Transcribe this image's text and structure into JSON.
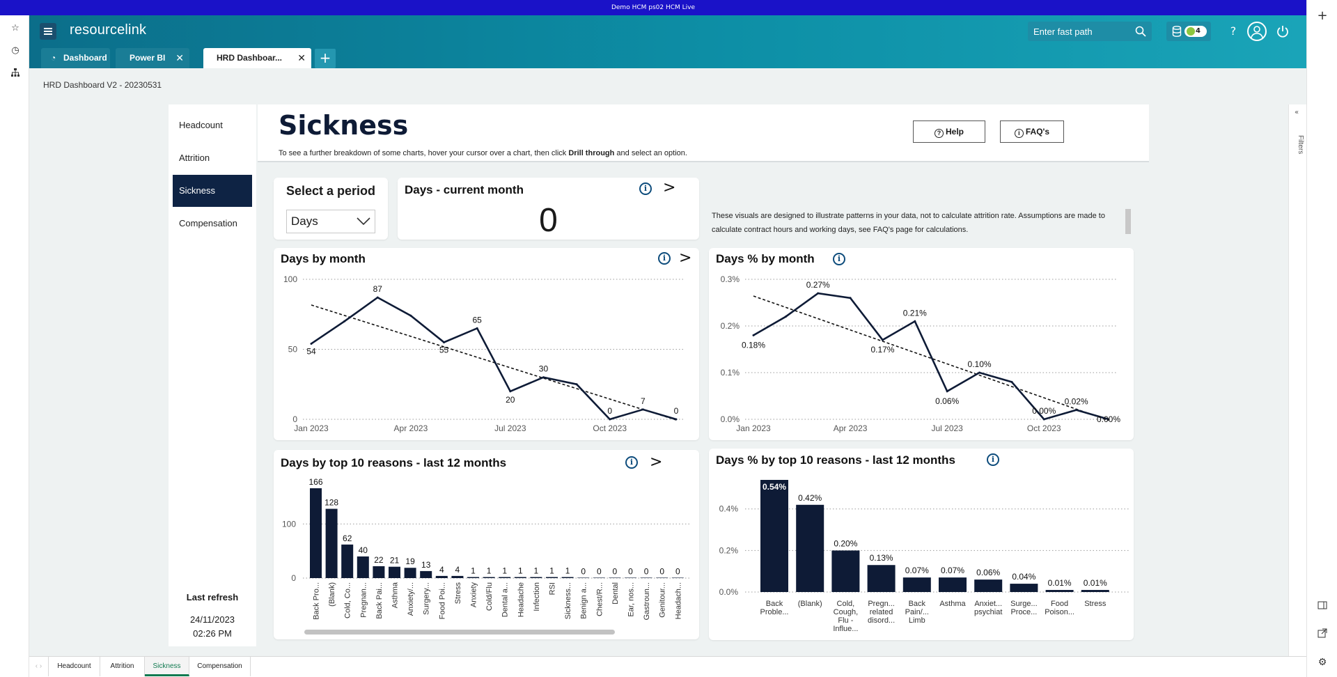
{
  "env_bar": {
    "text": "Demo HCM ps02 HCM Live"
  },
  "header": {
    "logo": "resourcelink",
    "fast_path_placeholder": "Enter fast path",
    "db_count": "4",
    "tabs": [
      {
        "label": "Dashboard"
      },
      {
        "label": "Power BI"
      },
      {
        "label": "HRD Dashboar..."
      }
    ],
    "add_tab": "+"
  },
  "page": {
    "title": "HRD Dashboard V2 - 20230531"
  },
  "report": {
    "title": "Sickness",
    "subtitle_pre": "To see a further breakdown of some charts, hover your cursor over a chart, then click ",
    "subtitle_bold": "Drill through",
    "subtitle_post": " and select an option.",
    "help_label": "Help",
    "faq_label": "FAQ's",
    "nav": [
      "Headcount",
      "Attrition",
      "Sickness",
      "Compensation"
    ],
    "last_refresh_label": "Last refresh",
    "last_refresh_date": "24/11/2023",
    "last_refresh_time": "02:26 PM",
    "period_title": "Select a period",
    "period_value": "Days",
    "kpi_title": "Days - current month",
    "kpi_value": "0",
    "note": "These visuals are designed to illustrate patterns in your data, not to calculate attrition rate. Assumptions are made to calculate contract hours and working days, see FAQ's page for calculations.",
    "filters_label": "Filters"
  },
  "bottom_tabs": [
    "Headcount",
    "Attrition",
    "Sickness",
    "Compensation"
  ],
  "colors": {
    "accent": "#0e2344",
    "header": "#0d8fa6",
    "info": "#0d4c7c"
  },
  "chart_data": [
    {
      "id": "days_by_month",
      "type": "line",
      "title": "Days by month",
      "x_ticks": [
        "Jan 2023",
        "Apr 2023",
        "Jul 2023",
        "Oct 2023"
      ],
      "ylim": [
        0,
        100
      ],
      "y_ticks": [
        "0",
        "50",
        "100"
      ],
      "values": [
        54,
        70,
        87,
        74,
        55,
        65,
        20,
        30,
        25,
        0,
        7,
        0
      ],
      "labels": [
        "54",
        "",
        "87",
        "",
        "55",
        "65",
        "20",
        "30",
        "",
        "0",
        "7",
        "0"
      ],
      "trendline": true,
      "grid": true
    },
    {
      "id": "days_pct_by_month",
      "type": "line",
      "title": "Days % by month",
      "x_ticks": [
        "Jan 2023",
        "Apr 2023",
        "Jul 2023",
        "Oct 2023"
      ],
      "ylim": [
        0,
        0.3
      ],
      "y_ticks": [
        "0.0%",
        "0.1%",
        "0.2%",
        "0.3%"
      ],
      "values": [
        0.18,
        0.22,
        0.27,
        0.26,
        0.17,
        0.21,
        0.06,
        0.1,
        0.08,
        0.0,
        0.02,
        0.0
      ],
      "labels": [
        "0.18%",
        "",
        "0.27%",
        "",
        "0.17%",
        "0.21%",
        "0.06%",
        "0.10%",
        "",
        "0.00%",
        "0.02%",
        "0.00%"
      ],
      "trendline": true,
      "grid": true
    },
    {
      "id": "days_by_top10",
      "type": "bar",
      "title": "Days by top 10 reasons - last 12 months",
      "ylim": [
        0,
        166
      ],
      "y_ticks": [
        "0",
        "100"
      ],
      "categories": [
        "Back Pro...",
        "(Blank)",
        "Cold, Co...",
        "Pregnan...",
        "Back Pai...",
        "Asthma",
        "Anxiety/...",
        "Surgery...",
        "Food Poi...",
        "Stress",
        "Anxiety",
        "Cold/Flu",
        "Dental a...",
        "Headache",
        "Infection",
        "RSI",
        "Sickness...",
        "Benign a...",
        "Chest/R...",
        "Dental",
        "Ear, nos...",
        "Gastroun...",
        "Genitour...",
        "Headach..."
      ],
      "values": [
        166,
        128,
        62,
        40,
        22,
        21,
        19,
        13,
        4,
        4,
        1,
        1,
        1,
        1,
        1,
        1,
        1,
        0,
        0,
        0,
        0,
        0,
        0,
        0
      ]
    },
    {
      "id": "days_pct_by_top10",
      "type": "bar",
      "title": "Days % by top 10 reasons - last 12 months",
      "ylim": [
        0,
        0.54
      ],
      "y_ticks": [
        "0.0%",
        "0.2%",
        "0.4%"
      ],
      "categories": [
        [
          "Back",
          "Proble..."
        ],
        [
          "(Blank)"
        ],
        [
          "Cold,",
          "Cough,",
          "Flu -",
          "Influe..."
        ],
        [
          "Pregn...",
          "related",
          "disord..."
        ],
        [
          "Back",
          "Pain/...",
          "Limb"
        ],
        [
          "Asthma"
        ],
        [
          "Anxiet...",
          "psychiat"
        ],
        [
          "Surge...",
          "Proce..."
        ],
        [
          "Food",
          "Poison..."
        ],
        [
          "Stress"
        ]
      ],
      "values": [
        0.54,
        0.42,
        0.2,
        0.13,
        0.07,
        0.07,
        0.06,
        0.04,
        0.01,
        0.01
      ],
      "labels": [
        "0.54%",
        "0.42%",
        "0.20%",
        "0.13%",
        "0.07%",
        "0.07%",
        "0.06%",
        "0.04%",
        "0.01%",
        "0.01%"
      ]
    }
  ]
}
